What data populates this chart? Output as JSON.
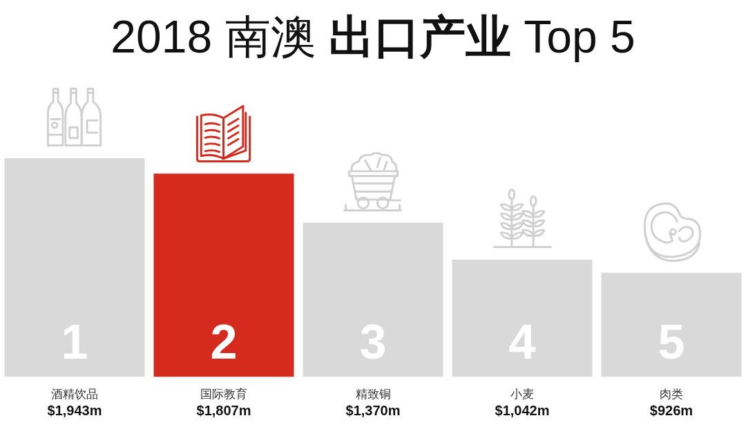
{
  "chart_data": {
    "type": "bar",
    "title": "2018 南澳 出口产业 Top 5",
    "categories": [
      "酒精饮品",
      "国际教育",
      "精致铜",
      "小麦",
      "肉类"
    ],
    "values": [
      1943,
      1807,
      1370,
      1042,
      926
    ],
    "colors": [
      "#d9d9d9",
      "#d42b1e",
      "#d9d9d9",
      "#d9d9d9",
      "#d9d9d9"
    ],
    "value_labels": [
      "$1,943m",
      "$1,807m",
      "$1,370m",
      "$1,042m",
      "$926m"
    ],
    "annotations": [
      "1",
      "2",
      "3",
      "4",
      "5"
    ],
    "grid": false,
    "legend": false
  }
}
